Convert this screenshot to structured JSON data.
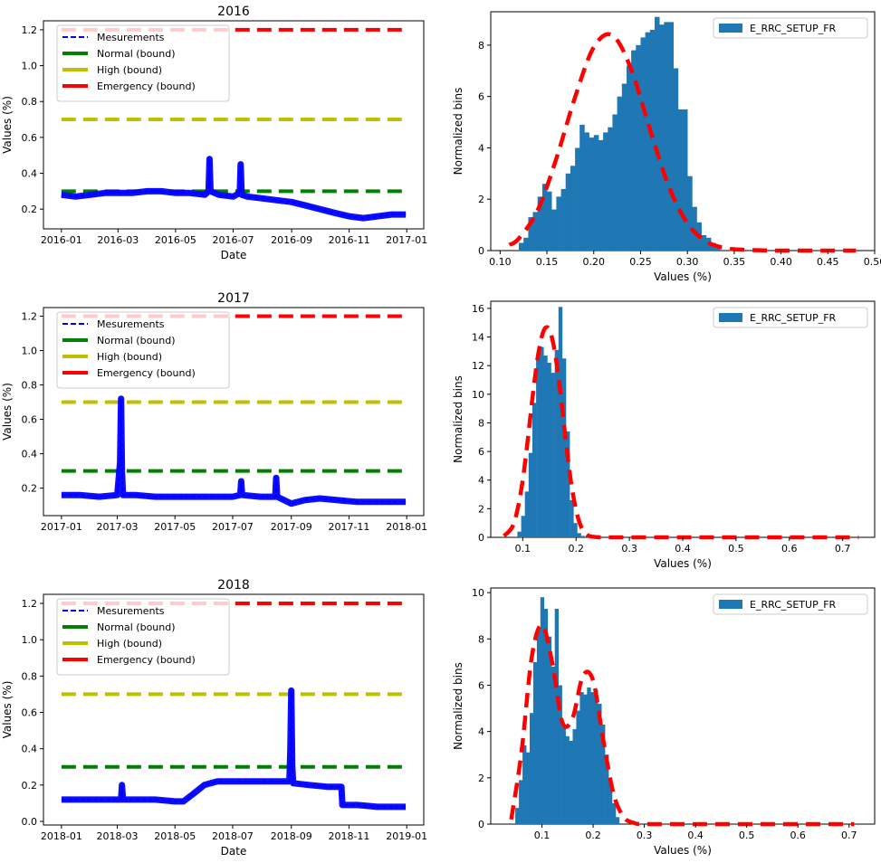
{
  "chart_data": [
    {
      "type": "line",
      "title": "2016",
      "xlabel": "Date",
      "ylabel": "Values (%)",
      "x_ticks": [
        "2016-01",
        "2016-03",
        "2016-05",
        "2016-07",
        "2016-09",
        "2016-11",
        "2017-01"
      ],
      "y_ticks": [
        "0.2",
        "0.4",
        "0.6",
        "0.8",
        "1.0",
        "1.2"
      ],
      "xlim": [
        "2015-12-13",
        "2017-01-19"
      ],
      "ylim": [
        0.09,
        1.25
      ],
      "legend_position": "upper-left",
      "legend": [
        "Mesurements",
        "Normal (bound)",
        "High (bound)",
        "Emergency (bound)"
      ],
      "bounds": [
        {
          "name": "Normal (bound)",
          "value": 0.3,
          "color": "#008000"
        },
        {
          "name": "High (bound)",
          "value": 0.7,
          "color": "#bfbf00"
        },
        {
          "name": "Emergency (bound)",
          "value": 1.2,
          "color": "#ff0000"
        }
      ],
      "series": [
        {
          "name": "Mesurements",
          "color": "#0000ff",
          "x": [
            "2016-01-01",
            "2016-01-16",
            "2016-02-01",
            "2016-02-16",
            "2016-03-01",
            "2016-03-16",
            "2016-04-01",
            "2016-04-16",
            "2016-05-01",
            "2016-05-16",
            "2016-06-01",
            "2016-06-05",
            "2016-06-06",
            "2016-06-07",
            "2016-06-16",
            "2016-07-01",
            "2016-07-08",
            "2016-07-09",
            "2016-07-10",
            "2016-07-16",
            "2016-08-01",
            "2016-08-16",
            "2016-09-01",
            "2016-09-16",
            "2016-10-01",
            "2016-10-16",
            "2016-11-01",
            "2016-11-16",
            "2016-12-01",
            "2016-12-16",
            "2016-12-31"
          ],
          "y": [
            0.28,
            0.27,
            0.28,
            0.29,
            0.29,
            0.29,
            0.3,
            0.3,
            0.29,
            0.29,
            0.28,
            0.3,
            0.48,
            0.3,
            0.28,
            0.27,
            0.29,
            0.45,
            0.28,
            0.27,
            0.26,
            0.25,
            0.24,
            0.22,
            0.2,
            0.18,
            0.16,
            0.15,
            0.16,
            0.17,
            0.17
          ]
        }
      ]
    },
    {
      "type": "bar",
      "xlabel": "Values (%)",
      "ylabel": "Normalized bins",
      "legend_position": "upper-right",
      "legend": [
        "E_RRC_SETUP_FR"
      ],
      "x_ticks": [
        "0.10",
        "0.15",
        "0.20",
        "0.25",
        "0.30",
        "0.35",
        "0.40",
        "0.45",
        "0.50"
      ],
      "y_ticks": [
        "0",
        "2",
        "4",
        "6",
        "8"
      ],
      "xlim": [
        0.09,
        0.5
      ],
      "ylim": [
        0,
        9.3
      ],
      "bar_color": "#1f77b4",
      "fit_color": "#ff0000",
      "bins": [
        [
          0.12,
          0.3
        ],
        [
          0.125,
          0.5
        ],
        [
          0.13,
          1.3
        ],
        [
          0.135,
          1.5
        ],
        [
          0.14,
          2.1
        ],
        [
          0.145,
          2.6
        ],
        [
          0.15,
          2.3
        ],
        [
          0.155,
          1.6
        ],
        [
          0.16,
          2.1
        ],
        [
          0.165,
          2.4
        ],
        [
          0.17,
          3.0
        ],
        [
          0.175,
          3.3
        ],
        [
          0.18,
          4.0
        ],
        [
          0.185,
          4.9
        ],
        [
          0.19,
          4.6
        ],
        [
          0.195,
          4.4
        ],
        [
          0.2,
          4.5
        ],
        [
          0.205,
          4.3
        ],
        [
          0.21,
          4.6
        ],
        [
          0.215,
          4.8
        ],
        [
          0.22,
          5.3
        ],
        [
          0.225,
          6.0
        ],
        [
          0.23,
          6.5
        ],
        [
          0.235,
          7.2
        ],
        [
          0.24,
          7.8
        ],
        [
          0.245,
          8.0
        ],
        [
          0.25,
          8.3
        ],
        [
          0.255,
          8.5
        ],
        [
          0.26,
          8.6
        ],
        [
          0.265,
          9.1
        ],
        [
          0.27,
          8.8
        ],
        [
          0.275,
          8.9
        ],
        [
          0.28,
          8.9
        ],
        [
          0.285,
          7.1
        ],
        [
          0.29,
          5.5
        ],
        [
          0.295,
          5.5
        ],
        [
          0.3,
          2.9
        ],
        [
          0.305,
          1.7
        ],
        [
          0.31,
          1.1
        ],
        [
          0.315,
          0.6
        ],
        [
          0.32,
          0.5
        ],
        [
          0.325,
          0.3
        ],
        [
          0.33,
          0.1
        ]
      ],
      "fit": {
        "x": [
          0.11,
          0.12,
          0.14,
          0.16,
          0.18,
          0.2,
          0.22,
          0.24,
          0.26,
          0.28,
          0.3,
          0.32,
          0.34,
          0.36,
          0.38,
          0.4,
          0.45,
          0.48
        ],
        "y": [
          0.22,
          0.47,
          1.56,
          3.58,
          5.97,
          7.92,
          8.38,
          7.06,
          4.72,
          2.51,
          1.06,
          0.36,
          0.1,
          0.03,
          0.01,
          0.0,
          0.0,
          0.0
        ]
      }
    },
    {
      "type": "line",
      "title": "2017",
      "xlabel": "",
      "ylabel": "Values (%)",
      "x_ticks": [
        "2017-01",
        "2017-03",
        "2017-05",
        "2017-07",
        "2017-09",
        "2017-11",
        "2018-01"
      ],
      "y_ticks": [
        "0.2",
        "0.4",
        "0.6",
        "0.8",
        "1.0",
        "1.2"
      ],
      "xlim": [
        "2016-12-13",
        "2018-01-19"
      ],
      "ylim": [
        0.04,
        1.25
      ],
      "legend_position": "upper-left",
      "legend": [
        "Mesurements",
        "Normal (bound)",
        "High (bound)",
        "Emergency (bound)"
      ],
      "bounds": [
        {
          "name": "Normal (bound)",
          "value": 0.3,
          "color": "#008000"
        },
        {
          "name": "High (bound)",
          "value": 0.7,
          "color": "#bfbf00"
        },
        {
          "name": "Emergency (bound)",
          "value": 1.2,
          "color": "#ff0000"
        }
      ],
      "series": [
        {
          "name": "Mesurements",
          "color": "#0000ff",
          "x": [
            "2017-01-01",
            "2017-01-20",
            "2017-02-10",
            "2017-03-01",
            "2017-03-04",
            "2017-03-05",
            "2017-03-06",
            "2017-03-07",
            "2017-03-20",
            "2017-04-10",
            "2017-05-01",
            "2017-05-20",
            "2017-06-10",
            "2017-07-01",
            "2017-07-09",
            "2017-07-10",
            "2017-07-11",
            "2017-07-30",
            "2017-08-15",
            "2017-08-16",
            "2017-08-17",
            "2017-09-01",
            "2017-09-15",
            "2017-10-01",
            "2017-10-20",
            "2017-11-10",
            "2017-12-01",
            "2017-12-20",
            "2017-12-31"
          ],
          "y": [
            0.16,
            0.16,
            0.15,
            0.16,
            0.35,
            0.72,
            0.3,
            0.16,
            0.16,
            0.15,
            0.15,
            0.15,
            0.15,
            0.15,
            0.16,
            0.24,
            0.16,
            0.15,
            0.15,
            0.26,
            0.15,
            0.11,
            0.13,
            0.14,
            0.13,
            0.12,
            0.12,
            0.12,
            0.12
          ]
        }
      ]
    },
    {
      "type": "bar",
      "xlabel": "Values (%)",
      "ylabel": "Normalized bins",
      "legend_position": "upper-right",
      "legend": [
        "E_RRC_SETUP_FR"
      ],
      "x_ticks": [
        "0.1",
        "0.2",
        "0.3",
        "0.4",
        "0.5",
        "0.6",
        "0.7"
      ],
      "y_ticks": [
        "0",
        "2",
        "4",
        "6",
        "8",
        "10",
        "12",
        "14",
        "16"
      ],
      "xlim": [
        0.04,
        0.76
      ],
      "ylim": [
        0,
        16.5
      ],
      "bar_color": "#1f77b4",
      "fit_color": "#ff0000",
      "bins": [
        [
          0.09,
          0.4
        ],
        [
          0.097,
          1.5
        ],
        [
          0.104,
          3.2
        ],
        [
          0.111,
          5.9
        ],
        [
          0.118,
          9.4
        ],
        [
          0.125,
          12.6
        ],
        [
          0.132,
          13.3
        ],
        [
          0.139,
          12.7
        ],
        [
          0.146,
          12.2
        ],
        [
          0.153,
          11.5
        ],
        [
          0.16,
          13.1
        ],
        [
          0.167,
          16.1
        ],
        [
          0.174,
          12.5
        ],
        [
          0.181,
          7.4
        ],
        [
          0.188,
          2.6
        ],
        [
          0.195,
          1.0
        ],
        [
          0.202,
          0.3
        ],
        [
          0.209,
          0.1
        ]
      ],
      "fit": {
        "x": [
          0.065,
          0.08,
          0.09,
          0.1,
          0.11,
          0.12,
          0.13,
          0.14,
          0.15,
          0.16,
          0.17,
          0.18,
          0.19,
          0.2,
          0.21,
          0.22,
          0.23,
          0.25,
          0.3,
          0.4,
          0.5,
          0.6,
          0.73
        ],
        "y": [
          0.1,
          0.7,
          1.9,
          4.0,
          7.0,
          10.3,
          13.0,
          14.5,
          14.5,
          13.0,
          10.3,
          7.0,
          4.0,
          1.9,
          0.7,
          0.2,
          0.05,
          0.0,
          0.0,
          0.0,
          0.0,
          0.0,
          0.0
        ]
      }
    },
    {
      "type": "line",
      "title": "2018",
      "xlabel": "Date",
      "ylabel": "Values (%)",
      "x_ticks": [
        "2018-01",
        "2018-03",
        "2018-05",
        "2018-07",
        "2018-09",
        "2018-11",
        "2019-01"
      ],
      "y_ticks": [
        "0.0",
        "0.2",
        "0.4",
        "0.6",
        "0.8",
        "1.0",
        "1.2"
      ],
      "xlim": [
        "2017-12-13",
        "2019-01-19"
      ],
      "ylim": [
        -0.02,
        1.25
      ],
      "legend_position": "upper-left",
      "legend": [
        "Mesurements",
        "Normal (bound)",
        "High (bound)",
        "Emergency (bound)"
      ],
      "bounds": [
        {
          "name": "Normal (bound)",
          "value": 0.3,
          "color": "#008000"
        },
        {
          "name": "High (bound)",
          "value": 0.7,
          "color": "#bfbf00"
        },
        {
          "name": "Emergency (bound)",
          "value": 1.2,
          "color": "#ff0000"
        }
      ],
      "series": [
        {
          "name": "Mesurements",
          "color": "#0000ff",
          "x": [
            "2018-01-01",
            "2018-01-20",
            "2018-02-10",
            "2018-03-01",
            "2018-03-05",
            "2018-03-06",
            "2018-03-07",
            "2018-03-20",
            "2018-04-10",
            "2018-05-01",
            "2018-05-10",
            "2018-05-20",
            "2018-06-01",
            "2018-06-15",
            "2018-07-01",
            "2018-07-20",
            "2018-08-10",
            "2018-08-30",
            "2018-08-31",
            "2018-09-01",
            "2018-09-02",
            "2018-09-03",
            "2018-09-20",
            "2018-10-10",
            "2018-10-24",
            "2018-10-25",
            "2018-11-10",
            "2018-12-01",
            "2018-12-20",
            "2018-12-31"
          ],
          "y": [
            0.12,
            0.12,
            0.12,
            0.12,
            0.12,
            0.2,
            0.12,
            0.12,
            0.12,
            0.11,
            0.11,
            0.15,
            0.2,
            0.22,
            0.22,
            0.22,
            0.22,
            0.22,
            0.4,
            0.72,
            0.3,
            0.21,
            0.2,
            0.19,
            0.19,
            0.09,
            0.09,
            0.08,
            0.08,
            0.08
          ]
        }
      ]
    },
    {
      "type": "bar",
      "xlabel": "Values (%)",
      "ylabel": "Normalized bins",
      "legend_position": "upper-right",
      "legend": [
        "E_RRC_SETUP_FR"
      ],
      "x_ticks": [
        "0.1",
        "0.2",
        "0.3",
        "0.4",
        "0.5",
        "0.6",
        "0.7"
      ],
      "y_ticks": [
        "0",
        "2",
        "4",
        "6",
        "8",
        "10"
      ],
      "xlim": [
        0.0,
        0.75
      ],
      "ylim": [
        0,
        10.2
      ],
      "bar_color": "#1f77b4",
      "fit_color": "#ff0000",
      "bins": [
        [
          0.048,
          0.7
        ],
        [
          0.055,
          1.9
        ],
        [
          0.062,
          3.4
        ],
        [
          0.069,
          3.1
        ],
        [
          0.076,
          4.8
        ],
        [
          0.083,
          7.0
        ],
        [
          0.09,
          8.4
        ],
        [
          0.097,
          9.8
        ],
        [
          0.104,
          9.3
        ],
        [
          0.111,
          8.1
        ],
        [
          0.118,
          6.8
        ],
        [
          0.125,
          9.3
        ],
        [
          0.132,
          6.0
        ],
        [
          0.139,
          4.2
        ],
        [
          0.146,
          3.8
        ],
        [
          0.153,
          3.6
        ],
        [
          0.16,
          4.1
        ],
        [
          0.167,
          4.9
        ],
        [
          0.174,
          5.7
        ],
        [
          0.181,
          5.6
        ],
        [
          0.188,
          5.9
        ],
        [
          0.195,
          5.7
        ],
        [
          0.202,
          5.8
        ],
        [
          0.209,
          5.2
        ],
        [
          0.216,
          4.3
        ],
        [
          0.223,
          3.0
        ],
        [
          0.23,
          1.9
        ],
        [
          0.237,
          0.9
        ],
        [
          0.244,
          0.3
        ]
      ],
      "fit": {
        "x": [
          0.04,
          0.06,
          0.08,
          0.1,
          0.12,
          0.14,
          0.16,
          0.18,
          0.2,
          0.22,
          0.24,
          0.26,
          0.28,
          0.3,
          0.4,
          0.5,
          0.6,
          0.71
        ],
        "y": [
          0.2,
          3.1,
          7.2,
          8.6,
          7.0,
          4.4,
          4.6,
          6.4,
          6.2,
          3.6,
          1.3,
          0.3,
          0.05,
          0.0,
          0.0,
          0.0,
          0.0,
          0.0
        ]
      }
    }
  ]
}
